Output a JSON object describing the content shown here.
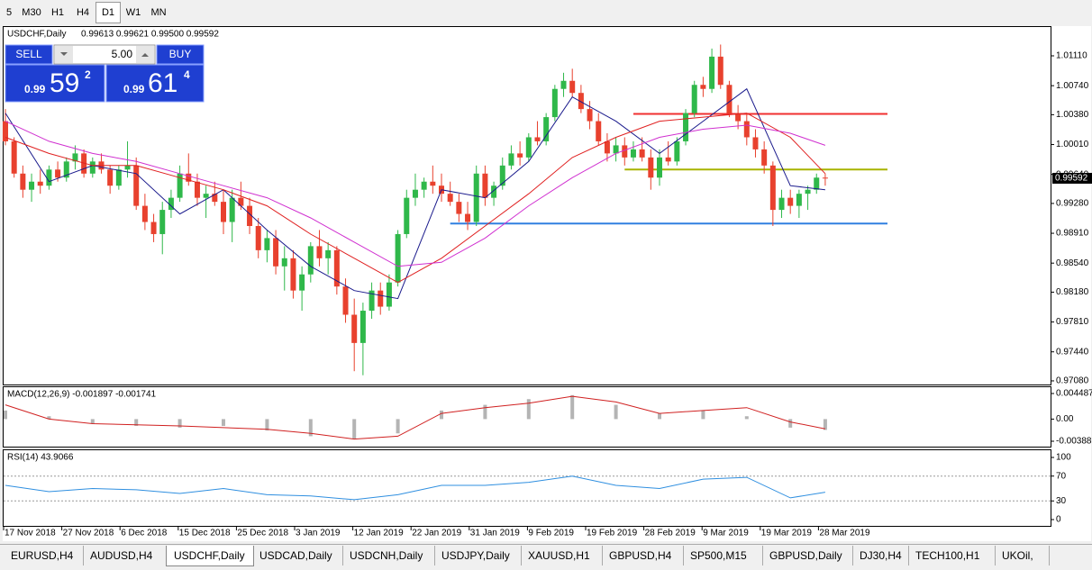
{
  "toolbar": {
    "timeframes": [
      "5",
      "M30",
      "H1",
      "H4",
      "D1",
      "W1",
      "MN"
    ],
    "active": "D1"
  },
  "header": {
    "symbol": "USDCHF,Daily",
    "ohlc": "0.99613 0.99621 0.99500 0.99592"
  },
  "trade_panel": {
    "sell": "SELL",
    "buy": "BUY",
    "volume": "5.00",
    "bid_prefix": "0.99",
    "bid_pips": "59",
    "bid_fraction": "2",
    "ask_prefix": "0.99",
    "ask_pips": "61",
    "ask_fraction": "4"
  },
  "chart_data": {
    "type": "candlestick",
    "up_color": "#2fb84a",
    "down_color": "#e8412e",
    "ylim": [
      0.97035,
      1.01445
    ],
    "yticks": [
      {
        "value": 1.0111,
        "label": "1.01110"
      },
      {
        "value": 1.0074,
        "label": "1.00740"
      },
      {
        "value": 1.0038,
        "label": "1.00380"
      },
      {
        "value": 1.0001,
        "label": "1.00010"
      },
      {
        "value": 0.9964,
        "label": "0.99640"
      },
      {
        "value": 0.9928,
        "label": "0.99280"
      },
      {
        "value": 0.9891,
        "label": "0.98910"
      },
      {
        "value": 0.9854,
        "label": "0.98540"
      },
      {
        "value": 0.9818,
        "label": "0.98180"
      },
      {
        "value": 0.9781,
        "label": "0.97810"
      },
      {
        "value": 0.9744,
        "label": "0.97440"
      },
      {
        "value": 0.9708,
        "label": "0.97080"
      }
    ],
    "current_price": {
      "value": 0.99592,
      "label": "0.99592"
    },
    "x_labels": [
      "17 Nov 2018",
      "27 Nov 2018",
      "6 Dec 2018",
      "15 Dec 2018",
      "25 Dec 2018",
      "3 Jan 2019",
      "12 Jan 2019",
      "22 Jan 2019",
      "31 Jan 2019",
      "9 Feb 2019",
      "19 Feb 2019",
      "28 Feb 2019",
      "9 Mar 2019",
      "19 Mar 2019",
      "28 Mar 2019"
    ],
    "candles": [
      [
        1.003,
        1.0045,
        1.0,
        1.0005
      ],
      [
        1.0005,
        1.001,
        0.996,
        0.9965
      ],
      [
        0.9965,
        0.9975,
        0.9935,
        0.9945
      ],
      [
        0.9945,
        0.9965,
        0.993,
        0.9955
      ],
      [
        0.9955,
        0.997,
        0.994,
        0.995
      ],
      [
        0.995,
        0.9975,
        0.9945,
        0.997
      ],
      [
        0.997,
        0.998,
        0.9955,
        0.996
      ],
      [
        0.996,
        0.9985,
        0.9955,
        0.998
      ],
      [
        0.998,
        1.0,
        0.997,
        0.999
      ],
      [
        0.999,
        0.9995,
        0.996,
        0.9965
      ],
      [
        0.9965,
        0.9985,
        0.996,
        0.998
      ],
      [
        0.998,
        0.999,
        0.9965,
        0.997
      ],
      [
        0.997,
        0.9975,
        0.994,
        0.995
      ],
      [
        0.995,
        0.9975,
        0.9945,
        0.997
      ],
      [
        0.997,
        1.0005,
        0.996,
        0.9975
      ],
      [
        0.9975,
        0.9985,
        0.992,
        0.9925
      ],
      [
        0.9925,
        0.994,
        0.9895,
        0.9905
      ],
      [
        0.9905,
        0.9915,
        0.988,
        0.989
      ],
      [
        0.989,
        0.993,
        0.9865,
        0.992
      ],
      [
        0.992,
        0.9945,
        0.991,
        0.9935
      ],
      [
        0.9935,
        0.9975,
        0.993,
        0.9965
      ],
      [
        0.9965,
        0.999,
        0.995,
        0.9955
      ],
      [
        0.9955,
        0.9965,
        0.9925,
        0.9935
      ],
      [
        0.9935,
        0.995,
        0.991,
        0.994
      ],
      [
        0.994,
        0.9955,
        0.9925,
        0.993
      ],
      [
        0.993,
        0.9945,
        0.989,
        0.9905
      ],
      [
        0.9905,
        0.9945,
        0.988,
        0.9935
      ],
      [
        0.9935,
        0.9955,
        0.992,
        0.9925
      ],
      [
        0.9925,
        0.9935,
        0.989,
        0.99
      ],
      [
        0.99,
        0.991,
        0.986,
        0.987
      ],
      [
        0.987,
        0.9895,
        0.9855,
        0.9885
      ],
      [
        0.9885,
        0.9895,
        0.984,
        0.985
      ],
      [
        0.985,
        0.9875,
        0.982,
        0.986
      ],
      [
        0.986,
        0.987,
        0.981,
        0.982
      ],
      [
        0.982,
        0.985,
        0.9795,
        0.984
      ],
      [
        0.984,
        0.988,
        0.983,
        0.9875
      ],
      [
        0.9875,
        0.9895,
        0.985,
        0.986
      ],
      [
        0.986,
        0.988,
        0.984,
        0.987
      ],
      [
        0.987,
        0.9875,
        0.9815,
        0.9825
      ],
      [
        0.9825,
        0.9835,
        0.978,
        0.979
      ],
      [
        0.979,
        0.981,
        0.972,
        0.9755
      ],
      [
        0.9755,
        0.9805,
        0.9715,
        0.9795
      ],
      [
        0.9795,
        0.983,
        0.9785,
        0.982
      ],
      [
        0.982,
        0.983,
        0.979,
        0.98
      ],
      [
        0.98,
        0.984,
        0.9795,
        0.983
      ],
      [
        0.983,
        0.9895,
        0.9825,
        0.989
      ],
      [
        0.989,
        0.9945,
        0.9885,
        0.9935
      ],
      [
        0.9935,
        0.9965,
        0.9925,
        0.9945
      ],
      [
        0.9945,
        0.996,
        0.9935,
        0.9955
      ],
      [
        0.9955,
        0.9975,
        0.994,
        0.995
      ],
      [
        0.995,
        0.9965,
        0.993,
        0.994
      ],
      [
        0.994,
        0.9955,
        0.9925,
        0.993
      ],
      [
        0.993,
        0.994,
        0.9905,
        0.9915
      ],
      [
        0.9915,
        0.993,
        0.9895,
        0.9905
      ],
      [
        0.9905,
        0.9975,
        0.99,
        0.9965
      ],
      [
        0.9965,
        0.9975,
        0.9925,
        0.9935
      ],
      [
        0.9935,
        0.9955,
        0.9925,
        0.995
      ],
      [
        0.995,
        0.9985,
        0.9945,
        0.9975
      ],
      [
        0.9975,
        1.0,
        0.997,
        0.999
      ],
      [
        0.999,
        1.0005,
        0.9975,
        0.9985
      ],
      [
        0.9985,
        1.0015,
        0.998,
        1.001
      ],
      [
        1.001,
        1.003,
        1.0,
        1.0005
      ],
      [
        1.0005,
        1.004,
        1.0,
        1.0035
      ],
      [
        1.0035,
        1.0075,
        1.003,
        1.007
      ],
      [
        1.007,
        1.009,
        1.006,
        1.008
      ],
      [
        1.008,
        1.0095,
        1.006,
        1.0065
      ],
      [
        1.0065,
        1.0075,
        1.004,
        1.0045
      ],
      [
        1.0045,
        1.0055,
        1.002,
        1.003
      ],
      [
        1.003,
        1.004,
        1.0,
        1.0005
      ],
      [
        1.0005,
        1.0015,
        0.998,
        0.999
      ],
      [
        0.999,
        1.001,
        0.998,
        1.0
      ],
      [
        1.0,
        1.001,
        0.9975,
        0.9985
      ],
      [
        0.9985,
        1.0005,
        0.998,
        0.9995
      ],
      [
        0.9995,
        1.001,
        0.998,
        0.9985
      ],
      [
        0.9985,
        0.9995,
        0.9945,
        0.996
      ],
      [
        0.996,
        0.9995,
        0.995,
        0.9985
      ],
      [
        0.9985,
        1.0005,
        0.9975,
        0.998
      ],
      [
        0.998,
        1.001,
        0.9975,
        1.0005
      ],
      [
        1.0005,
        1.0045,
        1.0,
        1.004
      ],
      [
        1.004,
        1.008,
        1.0035,
        1.0075
      ],
      [
        1.0075,
        1.0085,
        1.006,
        1.007
      ],
      [
        1.007,
        1.012,
        1.0065,
        1.011
      ],
      [
        1.011,
        1.0125,
        1.007,
        1.0075
      ],
      [
        1.0075,
        1.008,
        1.0035,
        1.004
      ],
      [
        1.004,
        1.005,
        1.002,
        1.003
      ],
      [
        1.003,
        1.004,
        1.0,
        1.001
      ],
      [
        1.001,
        1.002,
        0.9985,
        0.9995
      ],
      [
        0.9995,
        1.0005,
        0.9965,
        0.9975
      ],
      [
        0.9975,
        0.998,
        0.99,
        0.992
      ],
      [
        0.992,
        0.9945,
        0.991,
        0.9935
      ],
      [
        0.9935,
        0.9945,
        0.9915,
        0.9925
      ],
      [
        0.9925,
        0.9945,
        0.991,
        0.994
      ],
      [
        0.994,
        0.995,
        0.992,
        0.9945
      ],
      [
        0.9945,
        0.9965,
        0.994,
        0.996
      ],
      [
        0.996,
        0.9965,
        0.995,
        0.99592
      ]
    ],
    "points_x": [
      0,
      5,
      10,
      15,
      20,
      25,
      30,
      35,
      40,
      45,
      50,
      55,
      60,
      65,
      70,
      75,
      80,
      85,
      90,
      94
    ],
    "series": [
      {
        "color": "#1a1a8c",
        "values": [
          1.004,
          0.9955,
          0.9975,
          0.9965,
          0.9915,
          0.9945,
          0.9895,
          0.985,
          0.982,
          0.981,
          0.9945,
          0.9935,
          0.998,
          1.006,
          1.003,
          0.999,
          1.003,
          1.007,
          0.995,
          0.9945
        ]
      },
      {
        "color": "#e02020",
        "values": [
          1.001,
          0.999,
          0.9975,
          0.9975,
          0.996,
          0.9945,
          0.9925,
          0.989,
          0.986,
          0.983,
          0.986,
          0.99,
          0.994,
          0.9985,
          1.001,
          1.003,
          1.0035,
          1.004,
          1.001,
          0.9965
        ]
      },
      {
        "color": "#d030d0",
        "values": [
          1.003,
          1.0005,
          0.999,
          0.998,
          0.9965,
          0.995,
          0.9935,
          0.991,
          0.988,
          0.985,
          0.9855,
          0.9885,
          0.9925,
          0.996,
          0.999,
          1.001,
          1.002,
          1.0025,
          1.0015,
          1.0
        ]
      }
    ],
    "levels": [
      {
        "value": 1.0039,
        "color": "#f03030",
        "start": 72
      },
      {
        "value": 0.997,
        "color": "#a8b400",
        "start": 71
      },
      {
        "value": 0.9903,
        "color": "#3080e0",
        "start": 51
      }
    ]
  },
  "macd": {
    "title": "MACD(12,26,9) -0.001897 -0.001741",
    "ylim": [
      -0.003883,
      0.004487
    ],
    "yticks": [
      {
        "value": 0.004487,
        "label": "0.004487"
      },
      {
        "value": 0,
        "label": "0.00"
      },
      {
        "value": -0.003883,
        "label": "-0.003883"
      }
    ],
    "histogram": [
      0.0015,
      0.0005,
      -0.0008,
      -0.0012,
      -0.0015,
      -0.0012,
      -0.002,
      -0.003,
      -0.0035,
      -0.0025,
      0.0015,
      0.0025,
      0.0035,
      0.0042,
      0.0025,
      0.001,
      0.0015,
      0.0005,
      -0.0015,
      -0.0019
    ],
    "signal": [
      0.0025,
      0.0,
      -0.0008,
      -0.001,
      -0.0012,
      -0.0015,
      -0.0018,
      -0.0025,
      -0.0035,
      -0.003,
      0.001,
      0.002,
      0.0028,
      0.004,
      0.003,
      0.001,
      0.0015,
      0.002,
      -0.0005,
      -0.0017
    ]
  },
  "rsi": {
    "title": "RSI(14) 43.9066",
    "ylim": [
      0,
      100
    ],
    "yticks": [
      100,
      70,
      30,
      0
    ],
    "levels": [
      70,
      30
    ],
    "values": [
      55,
      45,
      50,
      48,
      42,
      50,
      40,
      38,
      32,
      40,
      55,
      55,
      60,
      70,
      55,
      50,
      65,
      68,
      35,
      44
    ]
  },
  "tabs": {
    "items": [
      "EURUSD,H4",
      "AUDUSD,H4",
      "USDCHF,Daily",
      "USDCAD,Daily",
      "USDCNH,Daily",
      "USDJPY,Daily",
      "XAUUSD,H1",
      "GBPUSD,H4",
      "SP500,M15",
      "GBPUSD,Daily",
      "DJ30,H4",
      "TECH100,H1",
      "UKOil,"
    ],
    "active": "USDCHF,Daily"
  }
}
